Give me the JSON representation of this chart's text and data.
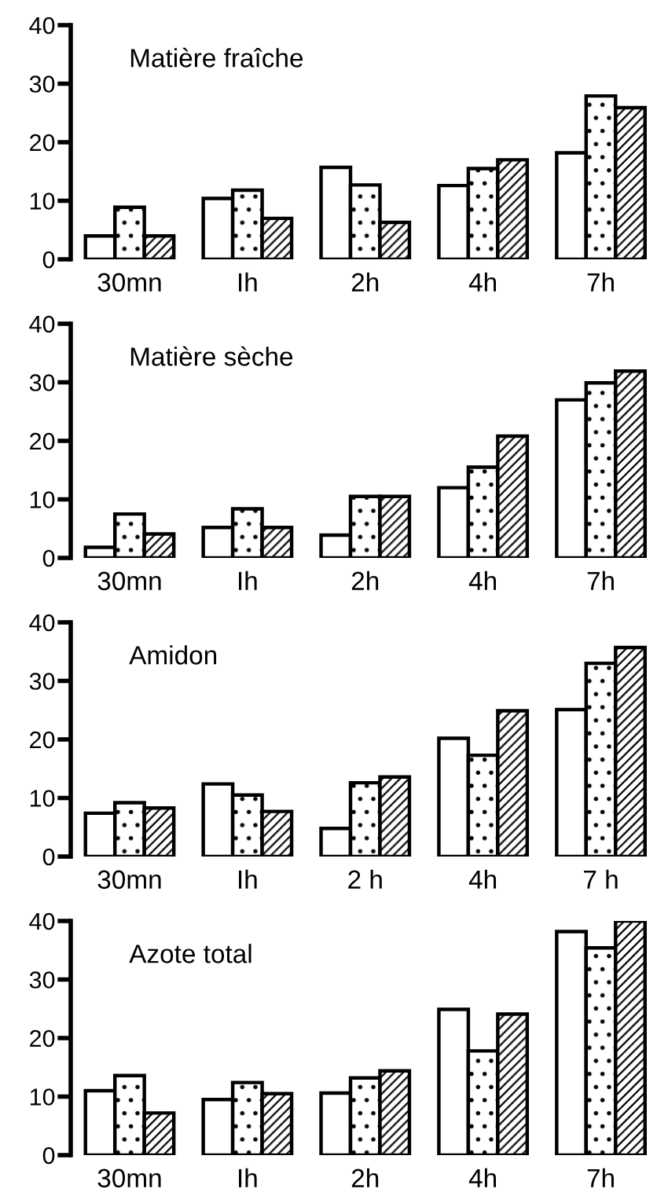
{
  "chart_data": [
    {
      "type": "bar",
      "title": "Matière fraîche",
      "categories": [
        "30mn",
        "Ih",
        "2h",
        "4h",
        "7h"
      ],
      "ylim": [
        0,
        40
      ],
      "yticks": [
        0,
        10,
        20,
        30,
        40
      ],
      "grid": false,
      "legend": false,
      "series": [
        {
          "color": "#ffffff",
          "values": [
            4,
            10.4,
            15.7,
            12.6,
            18.2
          ]
        },
        {
          "color": "#000000",
          "values": [
            8.9,
            11.8,
            12.7,
            15.5,
            27.9
          ]
        },
        {
          "color": "#000000",
          "values": [
            4,
            7,
            6.3,
            17,
            25.9
          ]
        }
      ]
    },
    {
      "type": "bar",
      "title": "Matière sèche",
      "categories": [
        "30mn",
        "Ih",
        "2h",
        "4h",
        "7h"
      ],
      "ylim": [
        0,
        40
      ],
      "yticks": [
        0,
        10,
        20,
        30,
        40
      ],
      "grid": false,
      "legend": false,
      "series": [
        {
          "color": "#ffffff",
          "values": [
            1.8,
            5.2,
            3.9,
            12,
            27
          ]
        },
        {
          "color": "#000000",
          "values": [
            7.5,
            8.4,
            10.5,
            15.5,
            29.9
          ]
        },
        {
          "color": "#000000",
          "values": [
            4.1,
            5.2,
            10.5,
            20.8,
            31.9
          ]
        }
      ]
    },
    {
      "type": "bar",
      "title": "Amidon",
      "categories": [
        "30mn",
        "Ih",
        "2 h",
        "4h",
        "7 h"
      ],
      "ylim": [
        0,
        40
      ],
      "yticks": [
        0,
        10,
        20,
        30,
        40
      ],
      "grid": false,
      "legend": false,
      "series": [
        {
          "color": "#ffffff",
          "values": [
            7.4,
            12.4,
            4.8,
            20.2,
            25.1
          ]
        },
        {
          "color": "#000000",
          "values": [
            9.2,
            10.5,
            12.6,
            17.3,
            33
          ]
        },
        {
          "color": "#000000",
          "values": [
            8.3,
            7.7,
            13.6,
            24.9,
            35.7
          ]
        }
      ]
    },
    {
      "type": "bar",
      "title": "Azote total",
      "categories": [
        "30mn",
        "Ih",
        "2h",
        "4h",
        "7h"
      ],
      "ylim": [
        0,
        40
      ],
      "yticks": [
        0,
        10,
        20,
        30,
        40
      ],
      "grid": false,
      "legend": false,
      "series": [
        {
          "color": "#ffffff",
          "values": [
            11,
            9.5,
            10.6,
            24.9,
            38.2
          ]
        },
        {
          "color": "#000000",
          "values": [
            13.6,
            12.4,
            13.2,
            17.8,
            35.4
          ]
        },
        {
          "color": "#000000",
          "values": [
            7.2,
            10.5,
            14.4,
            24.1,
            40
          ]
        }
      ]
    }
  ]
}
